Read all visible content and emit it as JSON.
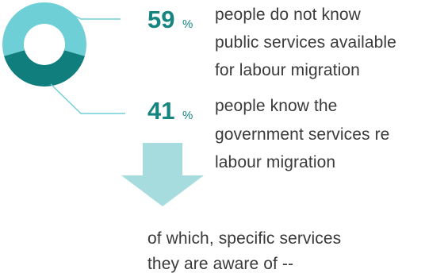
{
  "chart_data": {
    "type": "pie",
    "style": "donut",
    "title": "",
    "slices": [
      {
        "value": 59,
        "unit": "%",
        "color": "#6fcfd6",
        "label": "people do not know public services available for labour migration",
        "label_lines": [
          "people do not know",
          "public services available",
          "for labour migration"
        ]
      },
      {
        "value": 41,
        "unit": "%",
        "color": "#0f7e7d",
        "label": "people know the government services re labour migration",
        "label_lines": [
          "people know the",
          "government services re",
          "labour migration"
        ]
      }
    ]
  },
  "callout": {
    "arrow": "down-arrow-icon",
    "arrow_color": "#a6dcdd",
    "lines": [
      "of which, specific services",
      "they are aware of --"
    ]
  },
  "colors": {
    "number_color": "#15857f",
    "leader_line": "#6fcfd6",
    "text": "#3a3a3a"
  }
}
